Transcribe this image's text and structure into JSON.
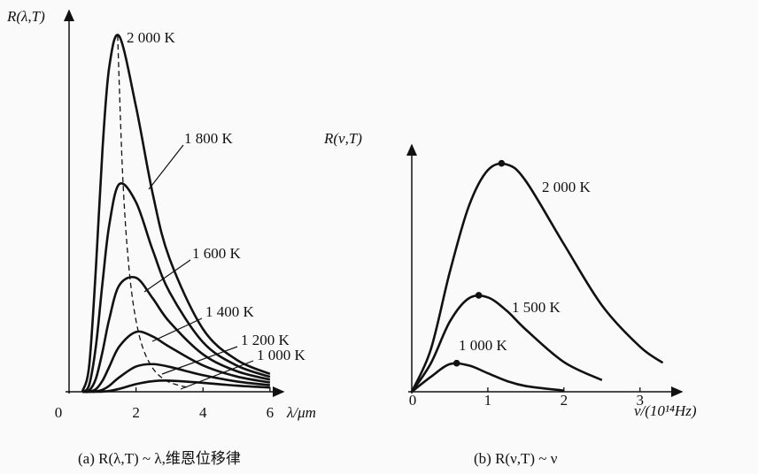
{
  "chart_data": [
    {
      "type": "line",
      "caption": "(a) R(λ,T) ~ λ,维恩位移律",
      "x_label": "λ/μm",
      "y_label": "R(λ,T)",
      "x": [
        0.4,
        0.6,
        0.8,
        1,
        1.2,
        1.5,
        2,
        2.5,
        3,
        4,
        5,
        6
      ],
      "xlim": [
        0,
        6.4
      ],
      "ylim": [
        0,
        107
      ],
      "xticks": [
        0,
        2,
        4,
        6
      ],
      "series": [
        {
          "name": "2 000 K",
          "color": "#111111",
          "values": [
            0.14,
            7.26,
            34.5,
            68.3,
            91.2,
            99.8,
            80.0,
            55.5,
            37.4,
            17.6,
            9.0,
            5.0
          ]
        },
        {
          "name": "1 800 K",
          "color": "#111111",
          "values": [
            0,
            1.92,
            12.7,
            30.7,
            46.8,
            58.3,
            53.2,
            39.7,
            28.0,
            13.9,
            7.4,
            4.2
          ]
        },
        {
          "name": "1 600 K",
          "color": "#111111",
          "values": [
            0,
            0.36,
            3.65,
            11.3,
            20.4,
            29.9,
            32.0,
            26.2,
            19.6,
            10.5,
            5.8,
            3.4
          ]
        },
        {
          "name": "1 400 K",
          "color": "#111111",
          "values": [
            0,
            0.04,
            0.73,
            3.13,
            6.98,
            12.7,
            16.8,
            15.5,
            12.6,
            7.4,
            4.3,
            2.6
          ]
        },
        {
          "name": "1 200 K",
          "color": "#111111",
          "values": [
            0,
            0,
            0.09,
            0.56,
            1.68,
            4.05,
            7.09,
            7.76,
            7.0,
            4.66,
            2.91,
            1.84
          ]
        },
        {
          "name": "1 000 K",
          "color": "#111111",
          "values": [
            0,
            0,
            0,
            0.05,
            0.23,
            0.82,
            2.14,
            2.96,
            3.12,
            2.5,
            1.73,
            1.17
          ]
        }
      ],
      "guide": {
        "style": "dashed",
        "color": "#111111",
        "x": [
          1.45,
          1.61,
          1.81,
          2.07,
          2.42,
          2.9,
          3.62
        ],
        "values": [
          100,
          59,
          32.8,
          16.8,
          7.78,
          3.13,
          1.02
        ]
      }
    },
    {
      "type": "line",
      "caption": "(b) R(ν,T) ~ ν",
      "x_label": "ν/(10¹⁴Hz)",
      "y_label": "R(ν,T)",
      "x": [
        0,
        0.25,
        0.5,
        0.75,
        1,
        1.25,
        1.5,
        2,
        2.5,
        3,
        3.3
      ],
      "xlim": [
        0,
        3.55
      ],
      "ylim": [
        0,
        108
      ],
      "xticks": [
        0,
        1,
        2,
        3
      ],
      "series": [
        {
          "name": "2 000 K",
          "color": "#111111",
          "values": [
            0,
            18.5,
            52.4,
            81.2,
            97.0,
            99.5,
            92.2,
            64.6,
            37.8,
            19.7,
            12.7
          ]
        },
        {
          "name": "1 500 K",
          "color": "#111111",
          "values": [
            0,
            12.4,
            30.7,
            40.9,
            41.3,
            35.4,
            27.2,
            13.0,
            5.1,
            null,
            null
          ]
        },
        {
          "name": "1 000 K",
          "color": "#111111",
          "values": [
            0,
            6.5,
            12.1,
            11.5,
            8.1,
            4.7,
            2.5,
            0.5,
            null,
            null,
            null
          ]
        }
      ],
      "markers": {
        "color": "#111111",
        "x": [
          1.18,
          0.88,
          0.59
        ],
        "values": [
          100,
          42.2,
          12.5
        ]
      }
    }
  ]
}
